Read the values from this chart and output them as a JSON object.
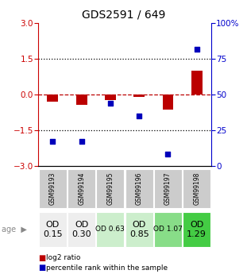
{
  "title": "GDS2591 / 649",
  "samples": [
    "GSM99193",
    "GSM99194",
    "GSM99195",
    "GSM99196",
    "GSM99197",
    "GSM99198"
  ],
  "log2_ratio": [
    -0.3,
    -0.45,
    -0.25,
    -0.1,
    -0.65,
    1.0
  ],
  "percentile_rank": [
    17,
    17,
    44,
    35,
    8,
    82
  ],
  "bar_color": "#bb0000",
  "dot_color": "#0000bb",
  "ylim_left": [
    -3,
    3
  ],
  "ylim_right": [
    0,
    100
  ],
  "yticks_left": [
    -3,
    -1.5,
    0,
    1.5,
    3
  ],
  "yticks_right": [
    0,
    25,
    50,
    75,
    100
  ],
  "hline_dotted": [
    1.5,
    -1.5
  ],
  "hline_red": 0,
  "od_labels": [
    "OD\n0.15",
    "OD\n0.30",
    "OD 0.63",
    "OD\n0.85",
    "OD 1.07",
    "OD\n1.29"
  ],
  "od_fontsize": [
    8,
    8,
    6.5,
    8,
    6.5,
    8
  ],
  "cell_colors": [
    "#eeeeee",
    "#eeeeee",
    "#cceecc",
    "#cceecc",
    "#88dd88",
    "#44cc44"
  ],
  "gsm_bg": "#cccccc",
  "legend_items": [
    {
      "color": "#bb0000",
      "label": "log2 ratio"
    },
    {
      "color": "#0000bb",
      "label": "percentile rank within the sample"
    }
  ],
  "title_fontsize": 10,
  "axis_color_left": "#cc0000",
  "axis_color_right": "#0000cc",
  "right_ytick_labels": [
    "0",
    "25",
    "50",
    "75",
    "100%"
  ]
}
